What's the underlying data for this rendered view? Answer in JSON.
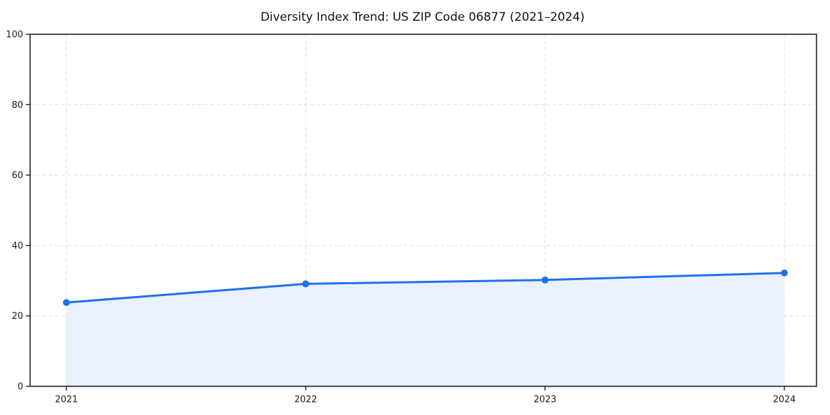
{
  "chart_data": {
    "type": "area",
    "title": "Diversity Index Trend: US ZIP Code 06877 (2021–2024)",
    "x": [
      2021,
      2022,
      2023,
      2024
    ],
    "x_tick_labels": [
      "2021",
      "2022",
      "2023",
      "2024"
    ],
    "values": [
      23.8,
      29.1,
      30.2,
      32.2
    ],
    "series_name": "Diversity Index",
    "xlabel": "",
    "ylabel": "",
    "ylim": [
      0,
      100
    ],
    "yticks": [
      0,
      20,
      40,
      60,
      80,
      100
    ],
    "grid": true,
    "grid_style": "dashed",
    "legend_position": "none",
    "marker": "circle",
    "colors": {
      "line": "#1f6feb",
      "marker": "#1f6feb",
      "fill": "#e9f1fd",
      "grid": "#dedede",
      "spine": "#1a1a1a",
      "tick_text": "#1a1a1a",
      "title_text": "#111111",
      "background": "#ffffff"
    }
  }
}
